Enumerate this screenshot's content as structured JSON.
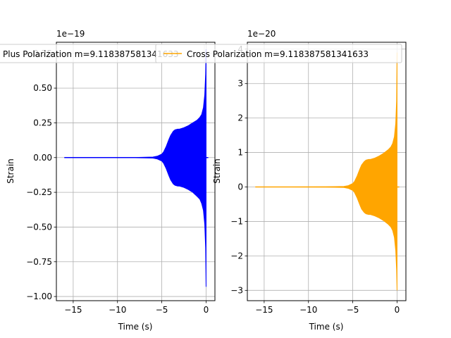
{
  "chart_data": [
    {
      "type": "line",
      "title": "Plus Polarization m=9.118387581341633",
      "xlabel": "Time (s)",
      "ylabel": "Strain",
      "offset_text": "1e−19",
      "xlim": [
        -16.9,
        1.0
      ],
      "ylim": [
        -1.03,
        0.83
      ],
      "xticks": [
        -15,
        -10,
        -5,
        0
      ],
      "xtick_labels": [
        "−15",
        "−10",
        "−5",
        "0"
      ],
      "yticks": [
        -1.0,
        -0.75,
        -0.5,
        -0.25,
        0.0,
        0.25,
        0.5,
        0.75
      ],
      "ytick_labels": [
        "−1.00",
        "−0.75",
        "−0.50",
        "−0.25",
        "0.00",
        "0.25",
        "0.50",
        "0.75"
      ],
      "grid": true,
      "color": "#0000ff",
      "envelope": {
        "t": [
          -16,
          -12,
          -8,
          -6,
          -5.5,
          -5,
          -4.8,
          -4.5,
          -4.2,
          -4,
          -3.7,
          -3.5,
          -3.2,
          -3,
          -2.5,
          -2,
          -1.5,
          -1,
          -0.7,
          -0.5,
          -0.3,
          -0.15,
          -0.05,
          0
        ],
        "upper": [
          0,
          0,
          0.001,
          0.004,
          0.01,
          0.025,
          0.04,
          0.08,
          0.13,
          0.16,
          0.19,
          0.2,
          0.205,
          0.205,
          0.215,
          0.23,
          0.25,
          0.27,
          0.29,
          0.31,
          0.36,
          0.45,
          0.6,
          0.78
        ],
        "lower": [
          0,
          0,
          -0.001,
          -0.004,
          -0.01,
          -0.025,
          -0.04,
          -0.08,
          -0.13,
          -0.16,
          -0.19,
          -0.2,
          -0.205,
          -0.205,
          -0.215,
          -0.23,
          -0.25,
          -0.28,
          -0.3,
          -0.33,
          -0.38,
          -0.48,
          -0.65,
          -0.93
        ]
      }
    },
    {
      "type": "line",
      "title": "Cross Polarization m=9.118387581341633",
      "xlabel": "Time (s)",
      "ylabel": "Strain",
      "offset_text": "1e−20",
      "xlim": [
        -16.9,
        1.0
      ],
      "ylim": [
        -3.3,
        4.2
      ],
      "xticks": [
        -15,
        -10,
        -5,
        0
      ],
      "xtick_labels": [
        "−15",
        "−10",
        "−5",
        "0"
      ],
      "yticks": [
        -3,
        -2,
        -1,
        0,
        1,
        2,
        3,
        4
      ],
      "ytick_labels": [
        "−3",
        "−2",
        "−1",
        "0",
        "1",
        "2",
        "3",
        "4"
      ],
      "grid": true,
      "color": "#ffa500",
      "envelope": {
        "t": [
          -16,
          -12,
          -8,
          -6,
          -5.5,
          -5,
          -4.8,
          -4.5,
          -4.2,
          -4,
          -3.7,
          -3.5,
          -3.2,
          -3,
          -2.5,
          -2,
          -1.5,
          -1,
          -0.7,
          -0.5,
          -0.3,
          -0.15,
          -0.05,
          0
        ],
        "upper": [
          0,
          0,
          0.005,
          0.015,
          0.04,
          0.1,
          0.16,
          0.32,
          0.52,
          0.64,
          0.74,
          0.78,
          0.8,
          0.8,
          0.84,
          0.9,
          0.98,
          1.08,
          1.16,
          1.26,
          1.46,
          1.84,
          2.5,
          3.9
        ],
        "lower": [
          0,
          0,
          -0.005,
          -0.015,
          -0.04,
          -0.1,
          -0.16,
          -0.32,
          -0.52,
          -0.64,
          -0.74,
          -0.78,
          -0.8,
          -0.8,
          -0.84,
          -0.9,
          -0.98,
          -1.08,
          -1.16,
          -1.26,
          -1.46,
          -1.84,
          -2.4,
          -3.0
        ]
      }
    }
  ]
}
